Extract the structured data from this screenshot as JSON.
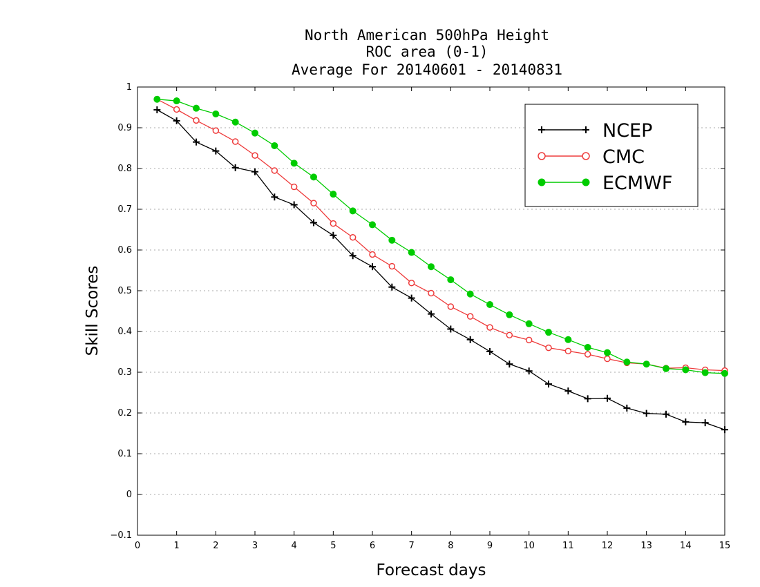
{
  "chart_data": {
    "type": "line",
    "title_lines": [
      "North American 500hPa Height",
      "ROC area (0-1)",
      "Average For 20140601 - 20140831"
    ],
    "xlabel": "Forecast days",
    "ylabel": "Skill Scores",
    "xlim": [
      0,
      15
    ],
    "ylim": [
      -0.1,
      1
    ],
    "x_ticks": [
      "0",
      "1",
      "2",
      "3",
      "4",
      "5",
      "6",
      "7",
      "8",
      "9",
      "10",
      "11",
      "12",
      "13",
      "14",
      "15"
    ],
    "y_ticks": [
      "-0.1",
      "0",
      "0.1",
      "0.2",
      "0.3",
      "0.4",
      "0.5",
      "0.6",
      "0.7",
      "0.8",
      "0.9",
      "1"
    ],
    "grid": "horizontal dotted",
    "legend_position": "top-right",
    "x": [
      0.5,
      1,
      1.5,
      2,
      2.5,
      3,
      3.5,
      4,
      4.5,
      5,
      5.5,
      6,
      6.5,
      7,
      7.5,
      8,
      8.5,
      9,
      9.5,
      10,
      10.5,
      11,
      11.5,
      12,
      12.5,
      13,
      13.5,
      14,
      14.5,
      15
    ],
    "series": [
      {
        "name": "NCEP",
        "color": "#000000",
        "marker": "plus",
        "values": [
          0.944,
          0.917,
          0.865,
          0.843,
          0.802,
          0.792,
          0.73,
          0.711,
          0.667,
          0.636,
          0.586,
          0.559,
          0.509,
          0.482,
          0.443,
          0.406,
          0.38,
          0.351,
          0.32,
          0.303,
          0.271,
          0.254,
          0.235,
          0.236,
          0.212,
          0.199,
          0.197,
          0.178,
          0.176,
          0.159
        ]
      },
      {
        "name": "CMC",
        "color": "#ee3b3b",
        "marker": "open-circle",
        "values": [
          0.97,
          0.945,
          0.918,
          0.893,
          0.866,
          0.832,
          0.795,
          0.755,
          0.715,
          0.665,
          0.631,
          0.589,
          0.56,
          0.519,
          0.494,
          0.461,
          0.437,
          0.41,
          0.391,
          0.379,
          0.36,
          0.352,
          0.344,
          0.333,
          0.323,
          0.32,
          0.31,
          0.311,
          0.306,
          0.304
        ]
      },
      {
        "name": "ECMWF",
        "color": "#00cc00",
        "marker": "filled-circle",
        "values": [
          0.97,
          0.966,
          0.948,
          0.934,
          0.914,
          0.887,
          0.856,
          0.813,
          0.779,
          0.737,
          0.696,
          0.662,
          0.624,
          0.594,
          0.559,
          0.527,
          0.492,
          0.466,
          0.441,
          0.419,
          0.398,
          0.38,
          0.361,
          0.348,
          0.325,
          0.32,
          0.309,
          0.306,
          0.299,
          0.297
        ]
      }
    ]
  }
}
